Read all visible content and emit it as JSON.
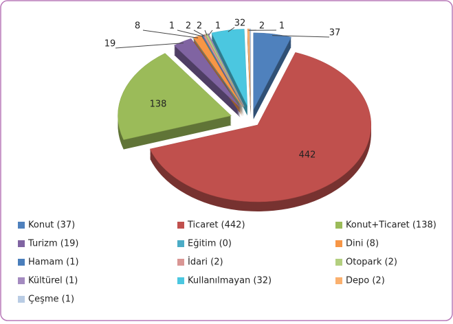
{
  "chart_data": {
    "type": "pie",
    "categories": [
      "Konut (37)",
      "Ticaret (442)",
      "Konut+Ticaret (138)",
      "Turizm (19)",
      "Eğitim (0)",
      "Dini (8)",
      "Hamam (1)",
      "İdari (2)",
      "Otopark (2)",
      "Kültürel (1)",
      "Kullanılmayan (32)",
      "Depo (2)",
      "Çeşme (1)"
    ],
    "values": [
      37,
      442,
      138,
      19,
      0,
      8,
      1,
      2,
      2,
      1,
      32,
      2,
      1
    ],
    "colors": [
      "#4f81bd",
      "#c0504d",
      "#9bbb59",
      "#8064a2",
      "#4bacc6",
      "#f79646",
      "#4a7ebb",
      "#d99694",
      "#b3cf7f",
      "#a48bc0",
      "#4bc7e0",
      "#fab06e",
      "#b9cce4"
    ],
    "legend": "bottom"
  }
}
